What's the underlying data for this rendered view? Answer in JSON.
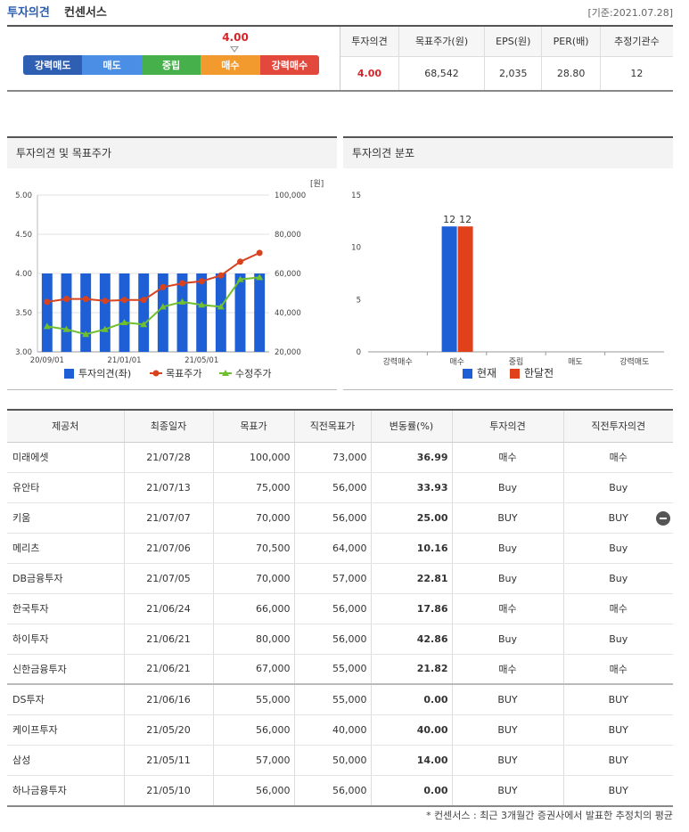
{
  "header": {
    "title": "투자의견",
    "subtitle": "컨센서스",
    "date": "[기준:2021.07.28]"
  },
  "opinion_scale": {
    "marker_value": "4.00",
    "items": [
      {
        "label": "강력매도",
        "color": "#2f5fb3"
      },
      {
        "label": "매도",
        "color": "#4a8ee6"
      },
      {
        "label": "중립",
        "color": "#46b04a"
      },
      {
        "label": "매수",
        "color": "#f39a2e"
      },
      {
        "label": "강력매수",
        "color": "#e2493c"
      }
    ]
  },
  "summary": {
    "headers": [
      "투자의견",
      "목표주가(원)",
      "EPS(원)",
      "PER(배)",
      "추정기관수"
    ],
    "values": [
      "4.00",
      "68,542",
      "2,035",
      "28.80",
      "12"
    ]
  },
  "panel1": {
    "title": "투자의견 및 목표주가"
  },
  "panel2": {
    "title": "투자의견 분포"
  },
  "chart_data": [
    {
      "type": "bar",
      "title": "투자의견 및 목표주가",
      "y_left_range": [
        3.0,
        5.0
      ],
      "y_left_ticks": [
        "5.00",
        "4.50",
        "4.00",
        "3.50",
        "3.00"
      ],
      "y_right_range": [
        20000,
        100000
      ],
      "y_right_ticks": [
        "100,000",
        "80,000",
        "60,000",
        "40,000",
        "20,000"
      ],
      "y_right_unit": "[원]",
      "x_tick_labels": [
        "20/09/01",
        "21/01/01",
        "21/05/01"
      ],
      "grid": true,
      "legend_position": "bottom",
      "series": [
        {
          "name": "투자의견(좌)",
          "kind": "bar",
          "axis": "left",
          "color": "#1f5fd6",
          "values": [
            4,
            4,
            4,
            4,
            4,
            4,
            4,
            4,
            4,
            4,
            4,
            4
          ]
        },
        {
          "name": "목표주가",
          "kind": "line",
          "axis": "right",
          "color": "#d8431f",
          "values": [
            45500,
            47000,
            47000,
            46000,
            46500,
            46500,
            53000,
            55000,
            56000,
            59000,
            66000,
            70500
          ]
        },
        {
          "name": "수정주가",
          "kind": "line",
          "axis": "right",
          "color": "#6fbf2e",
          "values": [
            33000,
            31500,
            29000,
            31500,
            35000,
            34000,
            43000,
            45500,
            44000,
            43000,
            57000,
            58000
          ]
        }
      ]
    },
    {
      "type": "bar",
      "title": "투자의견 분포",
      "categories": [
        "강력매수",
        "매수",
        "중립",
        "매도",
        "강력매도"
      ],
      "y_range": [
        0,
        15
      ],
      "y_ticks": [
        "15",
        "10",
        "5",
        "0"
      ],
      "grid": false,
      "legend_position": "bottom",
      "series": [
        {
          "name": "현재",
          "color": "#1f5fd6",
          "values": [
            0,
            12,
            0,
            0,
            0
          ]
        },
        {
          "name": "한달전",
          "color": "#e0401a",
          "values": [
            0,
            12,
            0,
            0,
            0
          ]
        }
      ]
    }
  ],
  "table": {
    "headers": [
      "제공처",
      "최종일자",
      "목표가",
      "직전목표가",
      "변동률(%)",
      "투자의견",
      "직전투자의견"
    ],
    "rows": [
      [
        "미래에셋",
        "21/07/28",
        "100,000",
        "73,000",
        "36.99",
        "매수",
        "매수"
      ],
      [
        "유안타",
        "21/07/13",
        "75,000",
        "56,000",
        "33.93",
        "Buy",
        "Buy"
      ],
      [
        "키움",
        "21/07/07",
        "70,000",
        "56,000",
        "25.00",
        "BUY",
        "BUY"
      ],
      [
        "메리츠",
        "21/07/06",
        "70,500",
        "64,000",
        "10.16",
        "Buy",
        "Buy"
      ],
      [
        "DB금융투자",
        "21/07/05",
        "70,000",
        "57,000",
        "22.81",
        "Buy",
        "Buy"
      ],
      [
        "한국투자",
        "21/06/24",
        "66,000",
        "56,000",
        "17.86",
        "매수",
        "매수"
      ],
      [
        "하이투자",
        "21/06/21",
        "80,000",
        "56,000",
        "42.86",
        "Buy",
        "Buy"
      ],
      [
        "신한금융투자",
        "21/06/21",
        "67,000",
        "55,000",
        "21.82",
        "매수",
        "매수"
      ],
      [
        "DS투자",
        "21/06/16",
        "55,000",
        "55,000",
        "0.00",
        "BUY",
        "BUY"
      ],
      [
        "케이프투자",
        "21/05/20",
        "56,000",
        "40,000",
        "40.00",
        "BUY",
        "BUY"
      ],
      [
        "삼성",
        "21/05/11",
        "57,000",
        "50,000",
        "14.00",
        "BUY",
        "BUY"
      ],
      [
        "하나금융투자",
        "21/05/10",
        "56,000",
        "56,000",
        "0.00",
        "BUY",
        "BUY"
      ]
    ]
  },
  "footnote": "* 컨센서스 : 최근 3개월간 증권사에서 발표한 추정치의 평균"
}
